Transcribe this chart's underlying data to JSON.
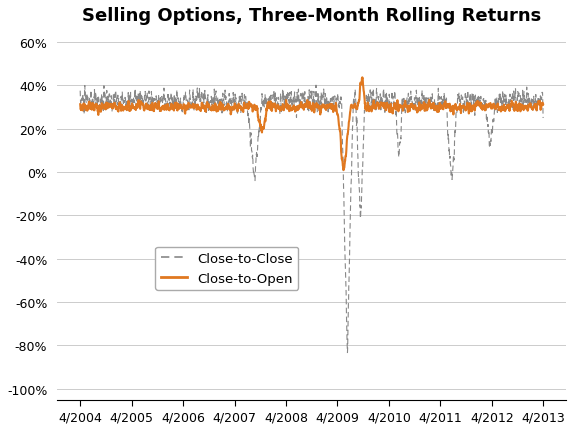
{
  "title": "Selling Options, Three-Month Rolling Returns",
  "title_fontsize": 13,
  "ylabel": "",
  "xlabel": "",
  "ylim": [
    -1.05,
    0.65
  ],
  "yticks": [
    -1.0,
    -0.8,
    -0.6,
    -0.4,
    -0.2,
    0.0,
    0.2,
    0.4,
    0.6
  ],
  "ytick_labels": [
    "-100%",
    "-80%",
    "-60%",
    "-40%",
    "-20%",
    "0%",
    "20%",
    "40%",
    "60%"
  ],
  "xtick_labels": [
    "4/2004",
    "4/2005",
    "4/2006",
    "4/2007",
    "4/2008",
    "4/2009",
    "4/2010",
    "4/2011",
    "4/2012",
    "4/2013"
  ],
  "close_to_close_color": "#888888",
  "close_to_open_color": "#E07820",
  "legend_labels": [
    "Close-to-Close",
    "Close-to-Open"
  ],
  "background_color": "#ffffff",
  "grid_color": "#cccccc",
  "n_points": 2400
}
